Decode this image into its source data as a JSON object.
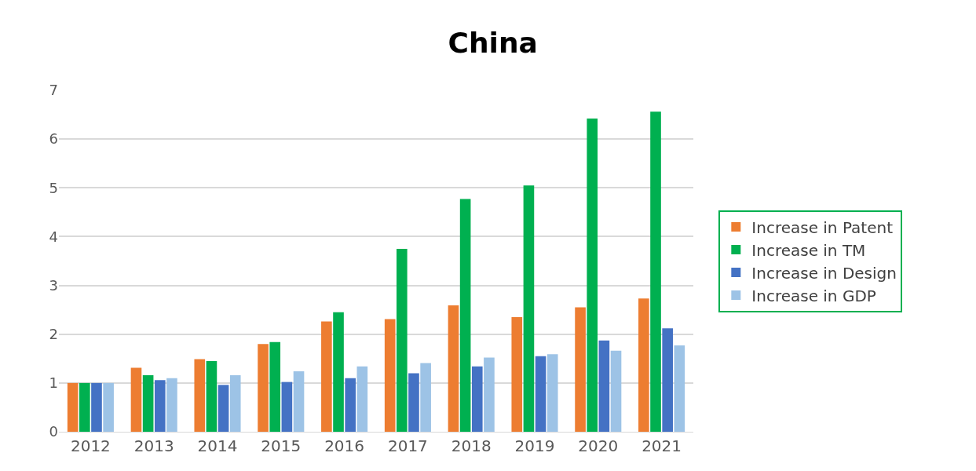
{
  "chart_data": {
    "type": "bar",
    "title": "China",
    "categories": [
      "2012",
      "2013",
      "2014",
      "2015",
      "2016",
      "2017",
      "2018",
      "2019",
      "2020",
      "2021"
    ],
    "series": [
      {
        "name": "Increase in Patent",
        "color": "#ed7d31",
        "values": [
          1.0,
          1.31,
          1.49,
          1.8,
          2.26,
          2.31,
          2.59,
          2.35,
          2.55,
          2.73
        ]
      },
      {
        "name": "Increase in TM",
        "color": "#00b050",
        "values": [
          1.0,
          1.16,
          1.45,
          1.84,
          2.45,
          3.75,
          4.77,
          5.05,
          6.42,
          6.56
        ]
      },
      {
        "name": "Increase in Design",
        "color": "#4472c4",
        "values": [
          1.0,
          1.06,
          0.96,
          1.02,
          1.1,
          1.2,
          1.34,
          1.55,
          1.87,
          2.12
        ]
      },
      {
        "name": "Increase in GDP",
        "color": "#9dc3e6",
        "values": [
          1.0,
          1.1,
          1.16,
          1.24,
          1.34,
          1.41,
          1.52,
          1.59,
          1.66,
          1.77
        ]
      }
    ],
    "ylim": [
      0,
      7
    ],
    "yticks": [
      0,
      1,
      2,
      3,
      4,
      5,
      6,
      7
    ],
    "grid": "y",
    "legend": "right"
  }
}
